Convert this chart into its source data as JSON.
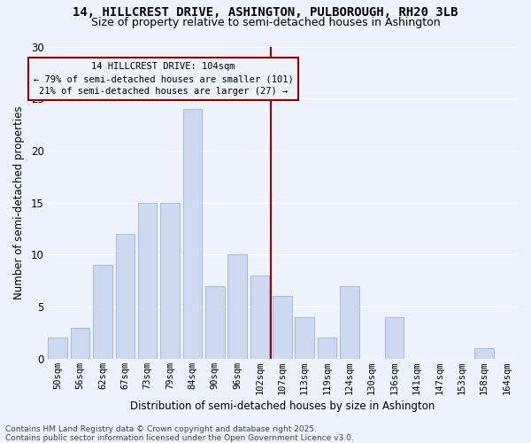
{
  "title_line1": "14, HILLCREST DRIVE, ASHINGTON, PULBOROUGH, RH20 3LB",
  "title_line2": "Size of property relative to semi-detached houses in Ashington",
  "xlabel": "Distribution of semi-detached houses by size in Ashington",
  "ylabel": "Number of semi-detached properties",
  "categories": [
    "50sqm",
    "56sqm",
    "62sqm",
    "67sqm",
    "73sqm",
    "79sqm",
    "84sqm",
    "90sqm",
    "96sqm",
    "102sqm",
    "107sqm",
    "113sqm",
    "119sqm",
    "124sqm",
    "130sqm",
    "136sqm",
    "141sqm",
    "147sqm",
    "153sqm",
    "158sqm",
    "164sqm"
  ],
  "values": [
    2,
    3,
    9,
    12,
    15,
    15,
    24,
    7,
    10,
    8,
    6,
    4,
    2,
    7,
    0,
    4,
    0,
    0,
    0,
    1,
    0
  ],
  "bar_color": "#ccd9f0",
  "bar_edge_color": "#99b3d9",
  "vline_color": "#990000",
  "annotation_text": "14 HILLCREST DRIVE: 104sqm\n← 79% of semi-detached houses are smaller (101)\n21% of semi-detached houses are larger (27) →",
  "annotation_box_facecolor": "#eef2fc",
  "annotation_box_edgecolor": "#990000",
  "ylim": [
    0,
    30
  ],
  "yticks": [
    0,
    5,
    10,
    15,
    20,
    25,
    30
  ],
  "footer_line1": "Contains HM Land Registry data © Crown copyright and database right 2025.",
  "footer_line2": "Contains public sector information licensed under the Open Government Licence v3.0.",
  "background_color": "#eef2fc",
  "grid_color": "#ffffff",
  "title1_fontsize": 10,
  "title2_fontsize": 9,
  "xlabel_fontsize": 8.5,
  "ylabel_fontsize": 8.5,
  "tick_fontsize": 7.5,
  "ytick_fontsize": 8.5,
  "footer_fontsize": 6.5,
  "ann_fontsize": 7.5
}
